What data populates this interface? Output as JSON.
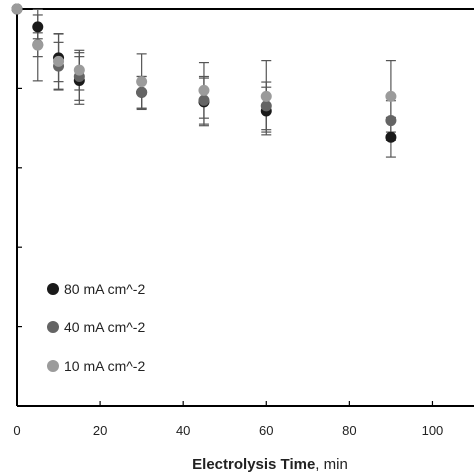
{
  "chart_data": {
    "type": "scatter",
    "title": "",
    "xlabel": "Electrolysis Time",
    "xlabel_unit": ", min",
    "ylabel": "",
    "xlim": [
      0,
      110
    ],
    "ylim": [
      0,
      1.0
    ],
    "x_ticks": [
      0,
      20,
      40,
      60,
      80,
      100
    ],
    "x_tick_labels": [
      "0",
      "20",
      "40",
      "60",
      "80",
      "100"
    ],
    "y_ticks": [
      0.2,
      0.4,
      0.6,
      0.8
    ],
    "grid": false,
    "error_bars": true,
    "legend_position": "bottom-left",
    "series": [
      {
        "name": "80 mA cm^-2",
        "color": "#1a1a1a",
        "x": [
          0,
          5,
          10,
          15,
          30,
          45,
          60,
          90
        ],
        "y": [
          1.0,
          0.955,
          0.877,
          0.82,
          0.79,
          0.766,
          0.743,
          0.677
        ],
        "err": [
          0,
          0.03,
          0.06,
          0.06,
          0.04,
          0.06,
          0.06,
          0.05
        ]
      },
      {
        "name": "40 mA cm^-2",
        "color": "#646464",
        "x": [
          0,
          5,
          10,
          15,
          30,
          45,
          60,
          90
        ],
        "y": [
          1.0,
          0.91,
          0.856,
          0.83,
          0.79,
          0.77,
          0.756,
          0.719
        ],
        "err": [
          0,
          0.03,
          0.06,
          0.06,
          0.04,
          0.06,
          0.06,
          0.05
        ]
      },
      {
        "name": "10 mA cm^-2",
        "color": "#9b9b9b",
        "x": [
          0,
          5,
          10,
          15,
          30,
          45,
          60,
          90
        ],
        "y": [
          1.0,
          0.909,
          0.868,
          0.846,
          0.817,
          0.795,
          0.78,
          0.78
        ],
        "err": [
          0,
          0.09,
          0.07,
          0.05,
          0.07,
          0.07,
          0.09,
          0.09
        ]
      }
    ]
  }
}
